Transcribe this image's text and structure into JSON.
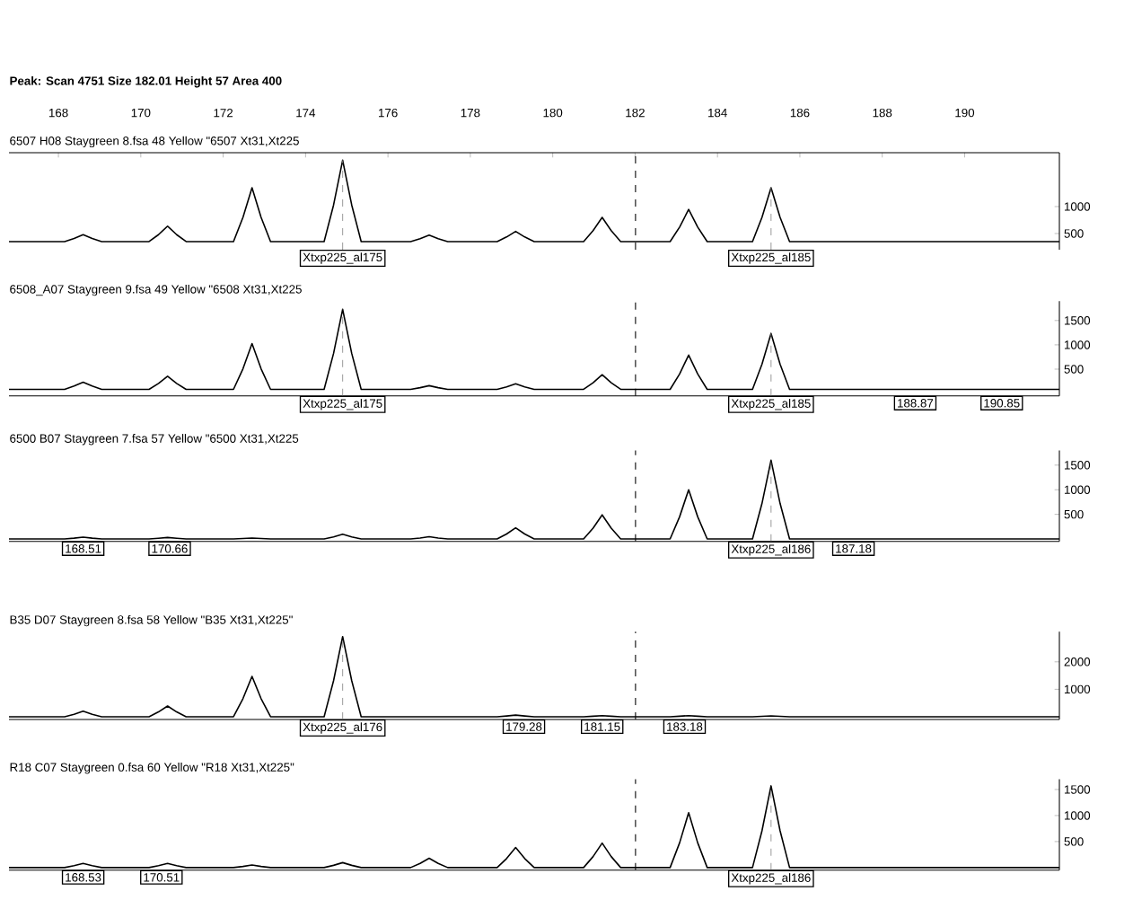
{
  "chart_data": [
    {
      "type": "line",
      "title": "6507 H08 Staygreen  8.fsa 48 Yellow \"6507 Xt31,Xt225",
      "annotations": [
        "Peak: Scan 4751  Size 182.01  Height 57  Area 400",
        {
          "text": "Xtxp225_al175",
          "x": 174.9,
          "y": 1860
        },
        {
          "text": "Xtxp225_al185",
          "x": 185.3,
          "y": 1350
        }
      ],
      "x": [
        166.8,
        168.15,
        168.38,
        168.6,
        168.82,
        169.05,
        170.2,
        170.43,
        170.65,
        170.87,
        171.1,
        172.25,
        172.48,
        172.7,
        172.92,
        173.15,
        174.45,
        174.68,
        174.9,
        175.12,
        175.35,
        176.55,
        176.78,
        177,
        177.22,
        177.45,
        178.65,
        178.88,
        179.1,
        179.32,
        179.55,
        180.75,
        180.98,
        181.2,
        181.42,
        181.65,
        182.85,
        183.08,
        183.3,
        183.52,
        183.75,
        184.85,
        185.08,
        185.3,
        185.52,
        185.75,
        192.3
      ],
      "series": [
        {
          "color": "#000000",
          "values": [
            350,
            350,
            407,
            477,
            407,
            350,
            350,
            479,
            637,
            479,
            350,
            350,
            800,
            1350,
            800,
            350,
            350,
            1030,
            1860,
            1030,
            350,
            350,
            404,
            470,
            404,
            350,
            350,
            436,
            540,
            436,
            350,
            350,
            553,
            800,
            553,
            350,
            350,
            619,
            947,
            619,
            350,
            350,
            800,
            1350,
            800,
            350,
            350
          ]
        }
      ],
      "xlim": [
        166.8,
        192.3
      ],
      "xticks": [
        168,
        170,
        172,
        174,
        176,
        178,
        180,
        182,
        184,
        186,
        188,
        190
      ],
      "ylim": [
        200,
        2000
      ],
      "yticks": [
        500,
        1000
      ],
      "ref_lines": [
        {
          "axis": "x",
          "value": 182.01,
          "line_style": "dashed",
          "color": "#000000"
        }
      ]
    },
    {
      "type": "line",
      "title": "6508_A07 Staygreen  9.fsa 49 Yellow \"6508 Xt31,Xt225",
      "annotations": [
        {
          "text": "Xtxp225_al175",
          "x": 174.9,
          "y": 1730
        },
        {
          "text": "Xtxp225_al185",
          "x": 185.3,
          "y": 1235
        },
        {
          "text": "188.87",
          "x": 188.8
        },
        {
          "text": "190.85",
          "x": 190.9
        }
      ],
      "x": [
        166.8,
        168.15,
        168.38,
        168.6,
        168.82,
        169.05,
        170.2,
        170.43,
        170.65,
        170.87,
        171.1,
        172.25,
        172.48,
        172.7,
        172.92,
        173.15,
        174.45,
        174.68,
        174.9,
        175.12,
        175.35,
        176.55,
        176.78,
        177,
        177.22,
        177.45,
        178.65,
        178.88,
        179.1,
        179.32,
        179.55,
        180.75,
        180.98,
        181.2,
        181.42,
        181.65,
        182.85,
        183.08,
        183.3,
        183.52,
        183.75,
        184.85,
        185.08,
        185.3,
        185.52,
        185.75,
        192.3
      ],
      "series": [
        {
          "color": "#000000",
          "values": [
            85,
            85,
            152,
            233,
            152,
            85,
            85,
            207,
            355,
            207,
            85,
            85,
            508,
            1025,
            508,
            85,
            85,
            825,
            1730,
            825,
            85,
            85,
            119,
            160,
            119,
            85,
            85,
            137,
            200,
            137,
            85,
            85,
            220,
            385,
            220,
            85,
            85,
            402,
            790,
            402,
            85,
            85,
            603,
            1235,
            603,
            85,
            85
          ]
        }
      ],
      "xlim": [
        166.8,
        192.3
      ],
      "xticks": [
        168,
        170,
        172,
        174,
        176,
        178,
        180,
        182,
        184,
        186,
        188,
        190
      ],
      "ylim": [
        -50,
        1900
      ],
      "yticks": [
        500,
        1000,
        1500
      ],
      "tick_labels": "y",
      "ref_lines": [
        {
          "axis": "x",
          "value": 182.01,
          "line_style": "dashed",
          "color": "#000000"
        }
      ]
    },
    {
      "type": "line",
      "title": "6500 B07 Staygreen  7.fsa 57 Yellow \"6500 Xt31,Xt225",
      "annotations": [
        {
          "text": "168.51",
          "x": 168.6
        },
        {
          "text": "170.66",
          "x": 170.7
        },
        {
          "text": "Xtxp225_al186",
          "x": 185.3,
          "y": 1600
        },
        {
          "text": "187.18",
          "x": 187.3
        }
      ],
      "x": [
        166.8,
        168.15,
        168.38,
        168.6,
        168.82,
        169.05,
        170.2,
        170.43,
        170.65,
        170.87,
        171.1,
        172.25,
        172.48,
        172.7,
        172.92,
        173.15,
        174.45,
        174.68,
        174.9,
        175.12,
        175.35,
        176.55,
        176.78,
        177,
        177.22,
        177.45,
        178.65,
        178.88,
        179.1,
        179.32,
        179.55,
        180.75,
        180.98,
        181.2,
        181.42,
        181.65,
        182.85,
        183.08,
        183.3,
        183.52,
        183.75,
        184.85,
        185.08,
        185.3,
        185.52,
        185.75,
        192.3
      ],
      "series": [
        {
          "color": "#000000",
          "values": [
            0,
            0,
            16,
            36,
            16,
            0,
            0,
            14,
            30,
            14,
            0,
            0,
            9,
            20,
            9,
            0,
            0,
            43,
            95,
            43,
            0,
            0,
            20,
            45,
            20,
            0,
            0,
            101,
            225,
            101,
            0,
            0,
            220,
            490,
            220,
            0,
            0,
            450,
            1000,
            450,
            0,
            0,
            720,
            1600,
            720,
            0,
            0
          ]
        }
      ],
      "xlim": [
        166.8,
        192.3
      ],
      "xticks": [
        168,
        170,
        172,
        174,
        176,
        178,
        180,
        182,
        184,
        186,
        188,
        190
      ],
      "ylim": [
        -50,
        1800
      ],
      "yticks": [
        500,
        1000,
        1500
      ],
      "tick_labels": "y",
      "ref_lines": [
        {
          "axis": "x",
          "value": 182.01,
          "line_style": "dashed",
          "color": "#000000"
        }
      ]
    },
    {
      "type": "line",
      "title": "B35 D07 Staygreen  8.fsa 58 Yellow \"B35 Xt31,Xt225\"",
      "annotations": [
        {
          "text": "Xtxp225_al176",
          "x": 174.9,
          "y": 2920
        },
        {
          "text": "179.28",
          "x": 179.3
        },
        {
          "text": "181.15",
          "x": 181.2
        },
        {
          "text": "183.18",
          "x": 183.2
        }
      ],
      "x": [
        166.8,
        168.15,
        168.38,
        168.6,
        168.82,
        169.05,
        170.2,
        170.43,
        170.65,
        170.87,
        171.1,
        172.25,
        172.48,
        172.7,
        172.92,
        173.15,
        174.45,
        174.68,
        174.9,
        175.12,
        175.35,
        176.55,
        176.78,
        177,
        177.22,
        177.45,
        178.65,
        178.88,
        179.1,
        179.32,
        179.55,
        180.75,
        180.98,
        181.2,
        181.42,
        181.65,
        182.85,
        183.08,
        183.3,
        183.52,
        183.75,
        184.85,
        185.08,
        185.3,
        185.52,
        185.75,
        192.3
      ],
      "series": [
        {
          "color": "#000000",
          "values": [
            0,
            0,
            90,
            200,
            90,
            0,
            0,
            175,
            390,
            175,
            0,
            0,
            660,
            1470,
            660,
            0,
            0,
            1314,
            2920,
            1314,
            0,
            0,
            0,
            0,
            0,
            0,
            0,
            27,
            60,
            27,
            0,
            0,
            18,
            40,
            18,
            0,
            0,
            18,
            40,
            18,
            0,
            0,
            14,
            30,
            14,
            0,
            0
          ]
        }
      ],
      "xlim": [
        166.8,
        192.3
      ],
      "xticks": [
        168,
        170,
        172,
        174,
        176,
        178,
        180,
        182,
        184,
        186,
        188,
        190
      ],
      "ylim": [
        -100,
        3100
      ],
      "yticks": [
        1000,
        2000
      ],
      "tick_labels": "y",
      "ref_lines": [
        {
          "axis": "x",
          "value": 182.01,
          "line_style": "dashed",
          "color": "#000000"
        }
      ]
    },
    {
      "type": "line",
      "title": "R18 C07 Staygreen  0.fsa 60 Yellow \"R18 Xt31,Xt225\"",
      "annotations": [
        {
          "text": "168.53",
          "x": 168.6
        },
        {
          "text": "170.51",
          "x": 170.5
        },
        {
          "text": "Xtxp225_al186",
          "x": 185.3,
          "y": 1570
        }
      ],
      "x": [
        166.8,
        168.15,
        168.38,
        168.6,
        168.82,
        169.05,
        170.2,
        170.43,
        170.65,
        170.87,
        171.1,
        172.25,
        172.48,
        172.7,
        172.92,
        173.15,
        174.45,
        174.68,
        174.9,
        175.12,
        175.35,
        176.55,
        176.78,
        177,
        177.22,
        177.45,
        178.65,
        178.88,
        179.1,
        179.32,
        179.55,
        180.75,
        180.98,
        181.2,
        181.42,
        181.65,
        182.85,
        183.08,
        183.3,
        183.52,
        183.75,
        184.85,
        185.08,
        185.3,
        185.52,
        185.75,
        192.3
      ],
      "series": [
        {
          "color": "#000000",
          "values": [
            0,
            0,
            36,
            80,
            36,
            0,
            0,
            36,
            80,
            36,
            0,
            0,
            22,
            50,
            22,
            0,
            0,
            43,
            95,
            43,
            0,
            0,
            81,
            180,
            81,
            0,
            0,
            173,
            385,
            173,
            0,
            0,
            211,
            470,
            211,
            0,
            0,
            475,
            1055,
            475,
            0,
            0,
            706,
            1570,
            706,
            0,
            0
          ]
        }
      ],
      "xlim": [
        166.8,
        192.3
      ],
      "xticks": [
        168,
        170,
        172,
        174,
        176,
        178,
        180,
        182,
        184,
        186,
        188,
        190
      ],
      "ylim": [
        -50,
        1700
      ],
      "yticks": [
        500,
        1000,
        1500
      ],
      "tick_labels": "y",
      "ref_lines": [
        {
          "axis": "x",
          "value": 182.01,
          "line_style": "dashed",
          "color": "#000000"
        }
      ]
    }
  ]
}
